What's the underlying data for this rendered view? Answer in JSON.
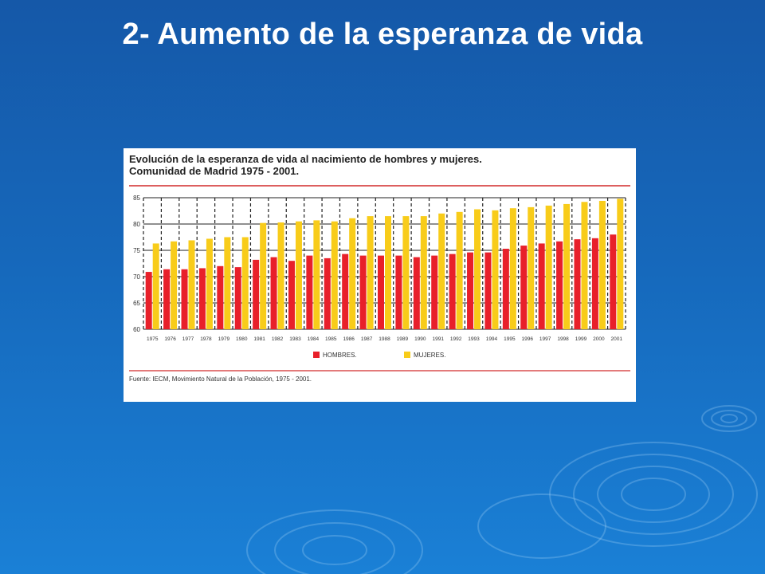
{
  "slide": {
    "title": "2- Aumento de la esperanza de vida"
  },
  "colors": {
    "hombres": "#e8202a",
    "mujeres": "#f8cc1a",
    "rule": "#d22a2a",
    "grid": "#222222"
  },
  "chart_data": {
    "type": "bar",
    "title_line1": "Evolución de la esperanza de vida al nacimiento de hombres y mujeres.",
    "title_line2": "Comunidad de Madrid 1975 - 2001.",
    "categories": [
      "1975",
      "1976",
      "1977",
      "1978",
      "1979",
      "1980",
      "1981",
      "1982",
      "1983",
      "1984",
      "1985",
      "1986",
      "1987",
      "1988",
      "1989",
      "1990",
      "1991",
      "1992",
      "1993",
      "1994",
      "1995",
      "1996",
      "1997",
      "1998",
      "1999",
      "2000",
      "2001"
    ],
    "series": [
      {
        "name": "HOMBRES.",
        "values": [
          70.9,
          71.4,
          71.4,
          71.6,
          72.0,
          71.8,
          73.2,
          73.7,
          73.0,
          74.0,
          73.5,
          74.3,
          74.0,
          74.0,
          74.0,
          73.7,
          74.0,
          74.3,
          74.6,
          74.6,
          75.3,
          75.9,
          76.3,
          76.7,
          77.1,
          77.3,
          78.0
        ]
      },
      {
        "name": "MUJERES.",
        "values": [
          76.3,
          76.7,
          76.9,
          77.2,
          77.5,
          77.5,
          80.2,
          80.3,
          80.5,
          80.7,
          80.5,
          81.1,
          81.5,
          81.5,
          81.5,
          81.5,
          82.0,
          82.3,
          82.8,
          82.6,
          83.0,
          83.2,
          83.5,
          83.8,
          84.2,
          84.4,
          84.8
        ]
      }
    ],
    "yticks": [
      "60",
      "65",
      "70",
      "75",
      "80",
      "85"
    ],
    "ylim": [
      60,
      85
    ],
    "xlabel": "",
    "ylabel": "",
    "legend_position": "bottom-left",
    "source": "Fuente: IECM, Movimiento Natural de la Población, 1975 - 2001."
  }
}
